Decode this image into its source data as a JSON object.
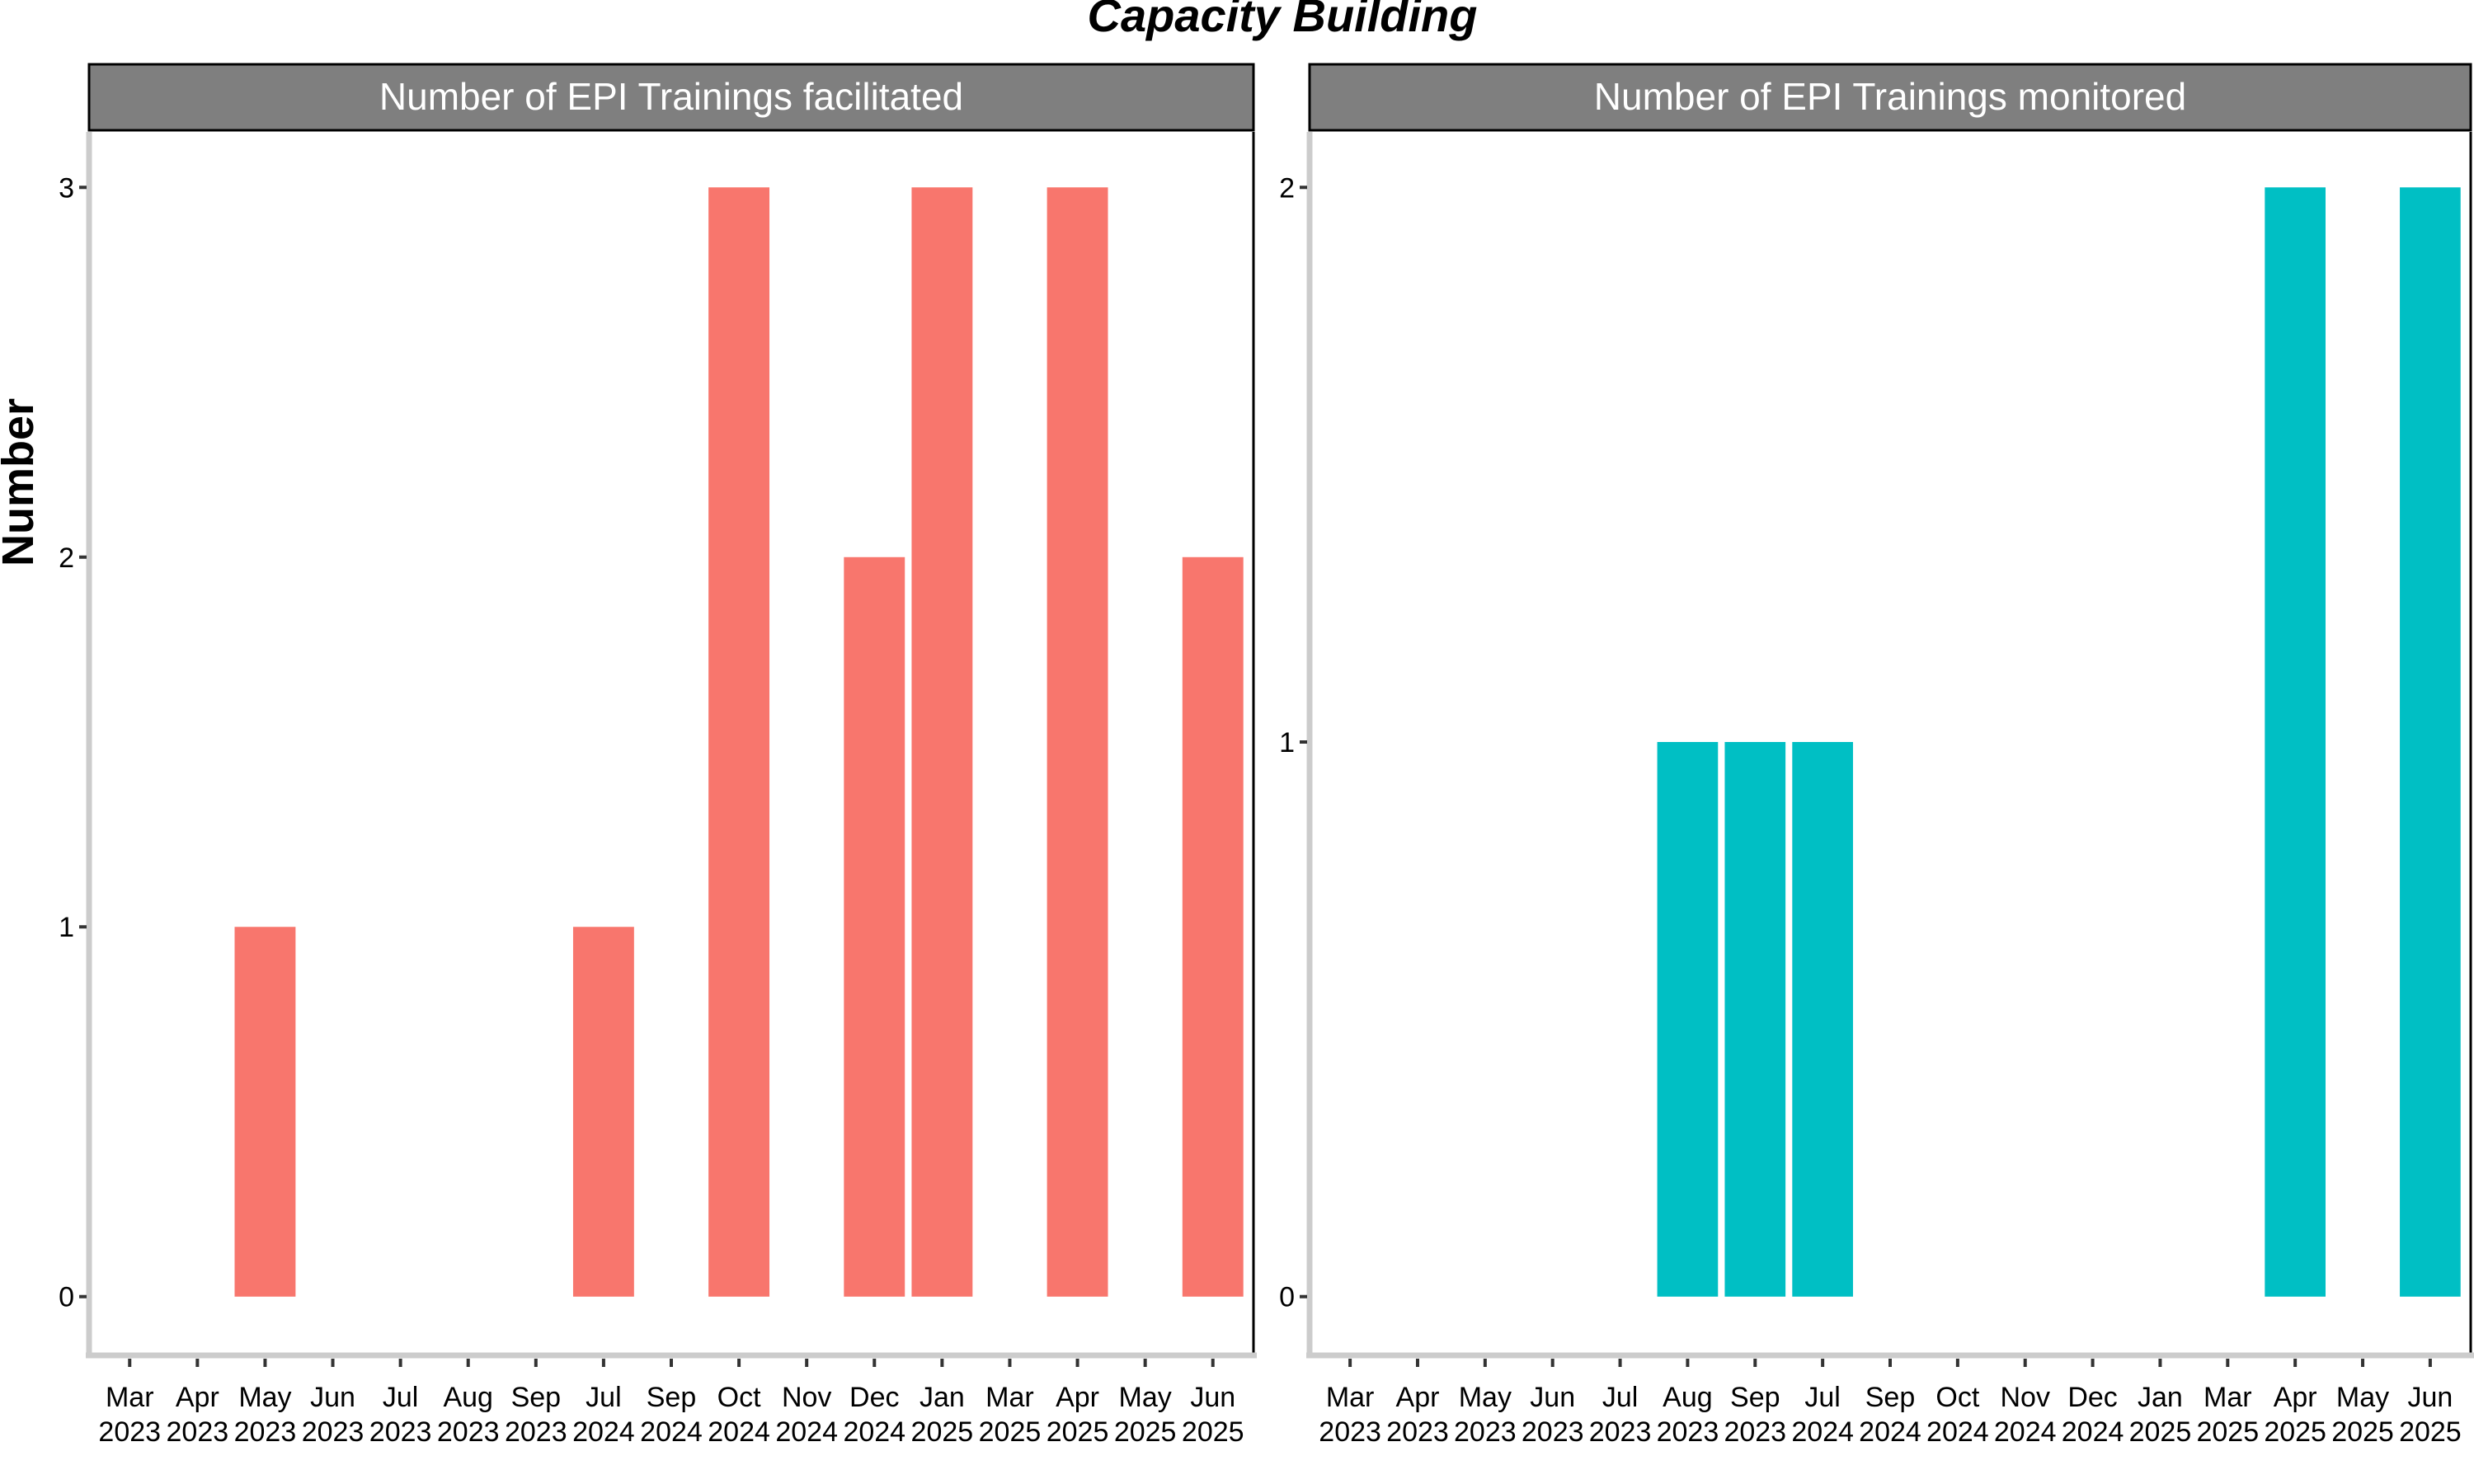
{
  "chart_data": {
    "title": "Capacity Building",
    "ylabel": "Number",
    "xlabel": "",
    "colors": {
      "facilitated": "#F8766D",
      "monitored": "#00BFC4",
      "strip": "#7F7F7F",
      "axis": "#CCCCCC"
    },
    "panels": [
      {
        "type": "bar",
        "title": "Number of EPI Trainings facilitated",
        "color": "#F8766D",
        "ylim": [
          0,
          3
        ],
        "yticks": [
          "0",
          "1",
          "2",
          "3"
        ],
        "x_ticks": [
          {
            "month": "Mar",
            "year": "2023"
          },
          {
            "month": "Apr",
            "year": "2023"
          },
          {
            "month": "May",
            "year": "2023"
          },
          {
            "month": "Jun",
            "year": "2023"
          },
          {
            "month": "Jul",
            "year": "2023"
          },
          {
            "month": "Aug",
            "year": "2023"
          },
          {
            "month": "Sep",
            "year": "2023"
          },
          {
            "month": "Jul",
            "year": "2024"
          },
          {
            "month": "Sep",
            "year": "2024"
          },
          {
            "month": "Oct",
            "year": "2024"
          },
          {
            "month": "Nov",
            "year": "2024"
          },
          {
            "month": "Dec",
            "year": "2024"
          },
          {
            "month": "Jan",
            "year": "2025"
          },
          {
            "month": "Mar",
            "year": "2025"
          },
          {
            "month": "Apr",
            "year": "2025"
          },
          {
            "month": "May",
            "year": "2025"
          },
          {
            "month": "Jun",
            "year": "2025"
          }
        ],
        "values": [
          0,
          0,
          1,
          0,
          0,
          0,
          0,
          1,
          0,
          3,
          0,
          2,
          3,
          0,
          3,
          0,
          2
        ]
      },
      {
        "type": "bar",
        "title": "Number of EPI Trainings monitored",
        "color": "#00BFC4",
        "ylim": [
          0,
          2
        ],
        "yticks": [
          "0",
          "1",
          "2"
        ],
        "x_ticks": [
          {
            "month": "Mar",
            "year": "2023"
          },
          {
            "month": "Apr",
            "year": "2023"
          },
          {
            "month": "May",
            "year": "2023"
          },
          {
            "month": "Jun",
            "year": "2023"
          },
          {
            "month": "Jul",
            "year": "2023"
          },
          {
            "month": "Aug",
            "year": "2023"
          },
          {
            "month": "Sep",
            "year": "2023"
          },
          {
            "month": "Jul",
            "year": "2024"
          },
          {
            "month": "Sep",
            "year": "2024"
          },
          {
            "month": "Oct",
            "year": "2024"
          },
          {
            "month": "Nov",
            "year": "2024"
          },
          {
            "month": "Dec",
            "year": "2024"
          },
          {
            "month": "Jan",
            "year": "2025"
          },
          {
            "month": "Mar",
            "year": "2025"
          },
          {
            "month": "Apr",
            "year": "2025"
          },
          {
            "month": "May",
            "year": "2025"
          },
          {
            "month": "Jun",
            "year": "2025"
          }
        ],
        "values": [
          0,
          0,
          0,
          0,
          0,
          1,
          1,
          1,
          0,
          0,
          0,
          0,
          0,
          0,
          2,
          0,
          2
        ]
      }
    ]
  }
}
